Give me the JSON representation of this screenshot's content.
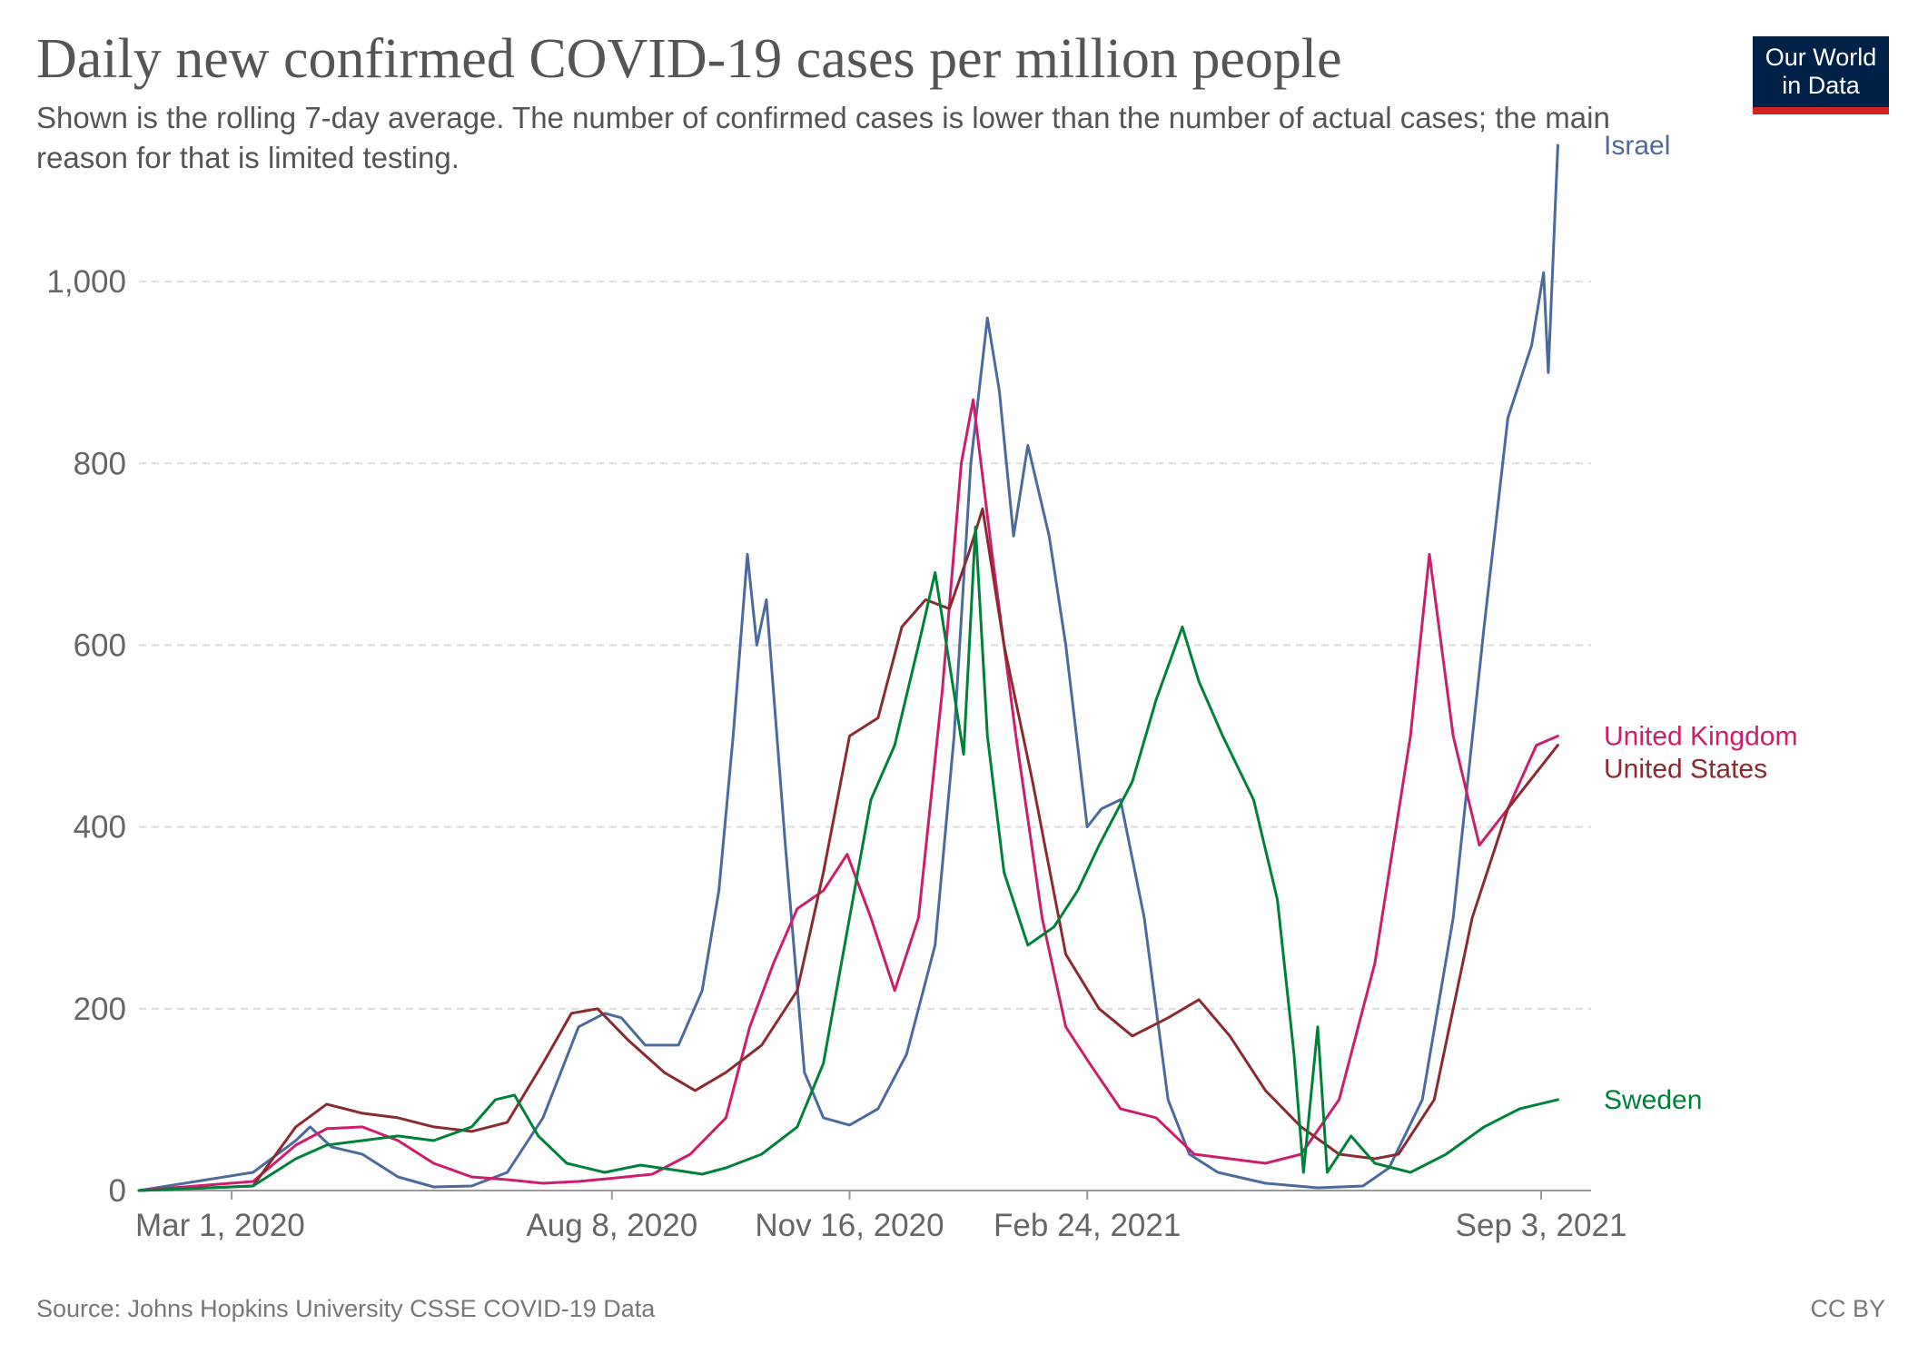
{
  "title": "Daily new confirmed COVID-19 cases per million people",
  "subtitle": "Shown is the rolling 7-day average. The number of confirmed cases is lower than the number of actual cases; the main reason for that is limited testing.",
  "logo": {
    "line1": "Our World",
    "line2": "in Data",
    "bg_color": "#002147",
    "accent_color": "#ce261e"
  },
  "source": "Source: Johns Hopkins University CSSE COVID-19 Data",
  "license": "CC BY",
  "chart_data": {
    "type": "line",
    "title": "Daily new confirmed COVID-19 cases per million people",
    "xlabel": "",
    "ylabel": "",
    "x_range": [
      "2020-01-22",
      "2021-09-24"
    ],
    "ylim": [
      0,
      1100
    ],
    "yticks": [
      0,
      200,
      400,
      600,
      800,
      1000
    ],
    "ytick_labels": [
      "0",
      "200",
      "400",
      "600",
      "800",
      "1,000"
    ],
    "xticks": [
      "2020-03-01",
      "2020-08-08",
      "2020-11-16",
      "2021-02-24",
      "2021-09-03"
    ],
    "xtick_labels": [
      "Mar 1, 2020",
      "Aug 8, 2020",
      "Nov 16, 2020",
      "Feb 24, 2021",
      "Sep 3, 2021"
    ],
    "grid": "horizontal dashed",
    "legend": "inline labels at line ends",
    "series": [
      {
        "name": "Israel",
        "color": "#4c6a9c",
        "points": [
          [
            "2020-01-22",
            0
          ],
          [
            "2020-03-10",
            20
          ],
          [
            "2020-03-28",
            55
          ],
          [
            "2020-04-03",
            70
          ],
          [
            "2020-04-12",
            48
          ],
          [
            "2020-04-25",
            40
          ],
          [
            "2020-05-10",
            15
          ],
          [
            "2020-05-25",
            4
          ],
          [
            "2020-06-10",
            5
          ],
          [
            "2020-06-25",
            20
          ],
          [
            "2020-07-10",
            80
          ],
          [
            "2020-07-25",
            180
          ],
          [
            "2020-08-05",
            195
          ],
          [
            "2020-08-12",
            190
          ],
          [
            "2020-08-22",
            160
          ],
          [
            "2020-09-05",
            160
          ],
          [
            "2020-09-15",
            220
          ],
          [
            "2020-09-22",
            330
          ],
          [
            "2020-09-28",
            500
          ],
          [
            "2020-10-04",
            700
          ],
          [
            "2020-10-08",
            600
          ],
          [
            "2020-10-12",
            650
          ],
          [
            "2020-10-20",
            380
          ],
          [
            "2020-10-28",
            130
          ],
          [
            "2020-11-05",
            80
          ],
          [
            "2020-11-16",
            72
          ],
          [
            "2020-11-28",
            90
          ],
          [
            "2020-12-10",
            150
          ],
          [
            "2020-12-22",
            270
          ],
          [
            "2020-12-30",
            500
          ],
          [
            "2021-01-06",
            800
          ],
          [
            "2021-01-13",
            960
          ],
          [
            "2021-01-18",
            880
          ],
          [
            "2021-01-24",
            720
          ],
          [
            "2021-01-30",
            820
          ],
          [
            "2021-02-08",
            720
          ],
          [
            "2021-02-15",
            600
          ],
          [
            "2021-02-24",
            400
          ],
          [
            "2021-03-02",
            420
          ],
          [
            "2021-03-10",
            430
          ],
          [
            "2021-03-20",
            300
          ],
          [
            "2021-03-30",
            100
          ],
          [
            "2021-04-08",
            40
          ],
          [
            "2021-04-20",
            20
          ],
          [
            "2021-05-10",
            8
          ],
          [
            "2021-06-01",
            3
          ],
          [
            "2021-06-20",
            5
          ],
          [
            "2021-07-01",
            25
          ],
          [
            "2021-07-15",
            100
          ],
          [
            "2021-07-28",
            300
          ],
          [
            "2021-08-10",
            620
          ],
          [
            "2021-08-20",
            850
          ],
          [
            "2021-08-30",
            930
          ],
          [
            "2021-09-04",
            1010
          ],
          [
            "2021-09-06",
            900
          ],
          [
            "2021-09-10",
            1150
          ]
        ]
      },
      {
        "name": "United Kingdom",
        "color": "#cc1e6c",
        "points": [
          [
            "2020-01-22",
            0
          ],
          [
            "2020-03-10",
            10
          ],
          [
            "2020-03-28",
            50
          ],
          [
            "2020-04-10",
            68
          ],
          [
            "2020-04-25",
            70
          ],
          [
            "2020-05-10",
            55
          ],
          [
            "2020-05-25",
            30
          ],
          [
            "2020-06-10",
            15
          ],
          [
            "2020-06-25",
            12
          ],
          [
            "2020-07-10",
            8
          ],
          [
            "2020-07-25",
            10
          ],
          [
            "2020-08-10",
            14
          ],
          [
            "2020-08-25",
            18
          ],
          [
            "2020-09-10",
            40
          ],
          [
            "2020-09-25",
            80
          ],
          [
            "2020-10-05",
            180
          ],
          [
            "2020-10-15",
            250
          ],
          [
            "2020-10-25",
            310
          ],
          [
            "2020-11-05",
            330
          ],
          [
            "2020-11-15",
            370
          ],
          [
            "2020-11-25",
            300
          ],
          [
            "2020-12-05",
            220
          ],
          [
            "2020-12-15",
            300
          ],
          [
            "2020-12-25",
            550
          ],
          [
            "2021-01-02",
            800
          ],
          [
            "2021-01-07",
            870
          ],
          [
            "2021-01-15",
            700
          ],
          [
            "2021-01-25",
            500
          ],
          [
            "2021-02-05",
            300
          ],
          [
            "2021-02-15",
            180
          ],
          [
            "2021-02-25",
            140
          ],
          [
            "2021-03-10",
            90
          ],
          [
            "2021-03-25",
            80
          ],
          [
            "2021-04-10",
            40
          ],
          [
            "2021-04-25",
            35
          ],
          [
            "2021-05-10",
            30
          ],
          [
            "2021-05-25",
            40
          ],
          [
            "2021-06-10",
            100
          ],
          [
            "2021-06-25",
            250
          ],
          [
            "2021-07-10",
            500
          ],
          [
            "2021-07-18",
            700
          ],
          [
            "2021-07-28",
            500
          ],
          [
            "2021-08-08",
            380
          ],
          [
            "2021-08-20",
            420
          ],
          [
            "2021-09-01",
            490
          ],
          [
            "2021-09-10",
            500
          ]
        ]
      },
      {
        "name": "United States",
        "color": "#8a2a31",
        "points": [
          [
            "2020-01-22",
            0
          ],
          [
            "2020-03-10",
            5
          ],
          [
            "2020-03-28",
            70
          ],
          [
            "2020-04-10",
            95
          ],
          [
            "2020-04-25",
            85
          ],
          [
            "2020-05-10",
            80
          ],
          [
            "2020-05-25",
            70
          ],
          [
            "2020-06-10",
            65
          ],
          [
            "2020-06-25",
            75
          ],
          [
            "2020-07-10",
            140
          ],
          [
            "2020-07-22",
            195
          ],
          [
            "2020-08-02",
            200
          ],
          [
            "2020-08-15",
            165
          ],
          [
            "2020-08-30",
            130
          ],
          [
            "2020-09-12",
            110
          ],
          [
            "2020-09-25",
            130
          ],
          [
            "2020-10-10",
            160
          ],
          [
            "2020-10-25",
            220
          ],
          [
            "2020-11-05",
            350
          ],
          [
            "2020-11-16",
            500
          ],
          [
            "2020-11-28",
            520
          ],
          [
            "2020-12-08",
            620
          ],
          [
            "2020-12-18",
            650
          ],
          [
            "2020-12-28",
            640
          ],
          [
            "2021-01-05",
            700
          ],
          [
            "2021-01-11",
            750
          ],
          [
            "2021-01-20",
            600
          ],
          [
            "2021-02-01",
            450
          ],
          [
            "2021-02-15",
            260
          ],
          [
            "2021-03-01",
            200
          ],
          [
            "2021-03-15",
            170
          ],
          [
            "2021-03-30",
            190
          ],
          [
            "2021-04-12",
            210
          ],
          [
            "2021-04-25",
            170
          ],
          [
            "2021-05-10",
            110
          ],
          [
            "2021-05-25",
            70
          ],
          [
            "2021-06-10",
            40
          ],
          [
            "2021-06-25",
            35
          ],
          [
            "2021-07-05",
            40
          ],
          [
            "2021-07-20",
            100
          ],
          [
            "2021-08-05",
            300
          ],
          [
            "2021-08-20",
            420
          ],
          [
            "2021-09-01",
            460
          ],
          [
            "2021-09-10",
            490
          ]
        ]
      },
      {
        "name": "Sweden",
        "color": "#00813a",
        "points": [
          [
            "2020-01-22",
            0
          ],
          [
            "2020-03-10",
            5
          ],
          [
            "2020-03-28",
            35
          ],
          [
            "2020-04-10",
            50
          ],
          [
            "2020-04-25",
            55
          ],
          [
            "2020-05-10",
            60
          ],
          [
            "2020-05-25",
            55
          ],
          [
            "2020-06-10",
            70
          ],
          [
            "2020-06-20",
            100
          ],
          [
            "2020-06-28",
            105
          ],
          [
            "2020-07-08",
            60
          ],
          [
            "2020-07-20",
            30
          ],
          [
            "2020-08-05",
            20
          ],
          [
            "2020-08-20",
            28
          ],
          [
            "2020-09-05",
            22
          ],
          [
            "2020-09-15",
            18
          ],
          [
            "2020-09-25",
            25
          ],
          [
            "2020-10-10",
            40
          ],
          [
            "2020-10-25",
            70
          ],
          [
            "2020-11-05",
            140
          ],
          [
            "2020-11-16",
            300
          ],
          [
            "2020-11-25",
            430
          ],
          [
            "2020-12-05",
            490
          ],
          [
            "2020-12-15",
            600
          ],
          [
            "2020-12-22",
            680
          ],
          [
            "2020-12-28",
            580
          ],
          [
            "2021-01-03",
            480
          ],
          [
            "2021-01-08",
            730
          ],
          [
            "2021-01-13",
            500
          ],
          [
            "2021-01-20",
            350
          ],
          [
            "2021-01-30",
            270
          ],
          [
            "2021-02-10",
            290
          ],
          [
            "2021-02-20",
            330
          ],
          [
            "2021-03-01",
            380
          ],
          [
            "2021-03-15",
            450
          ],
          [
            "2021-03-25",
            540
          ],
          [
            "2021-04-05",
            620
          ],
          [
            "2021-04-12",
            560
          ],
          [
            "2021-04-22",
            500
          ],
          [
            "2021-05-05",
            430
          ],
          [
            "2021-05-15",
            320
          ],
          [
            "2021-05-22",
            150
          ],
          [
            "2021-05-26",
            20
          ],
          [
            "2021-06-01",
            180
          ],
          [
            "2021-06-05",
            20
          ],
          [
            "2021-06-15",
            60
          ],
          [
            "2021-06-25",
            30
          ],
          [
            "2021-07-10",
            20
          ],
          [
            "2021-07-25",
            40
          ],
          [
            "2021-08-10",
            70
          ],
          [
            "2021-08-25",
            90
          ],
          [
            "2021-09-10",
            100
          ]
        ]
      }
    ]
  }
}
